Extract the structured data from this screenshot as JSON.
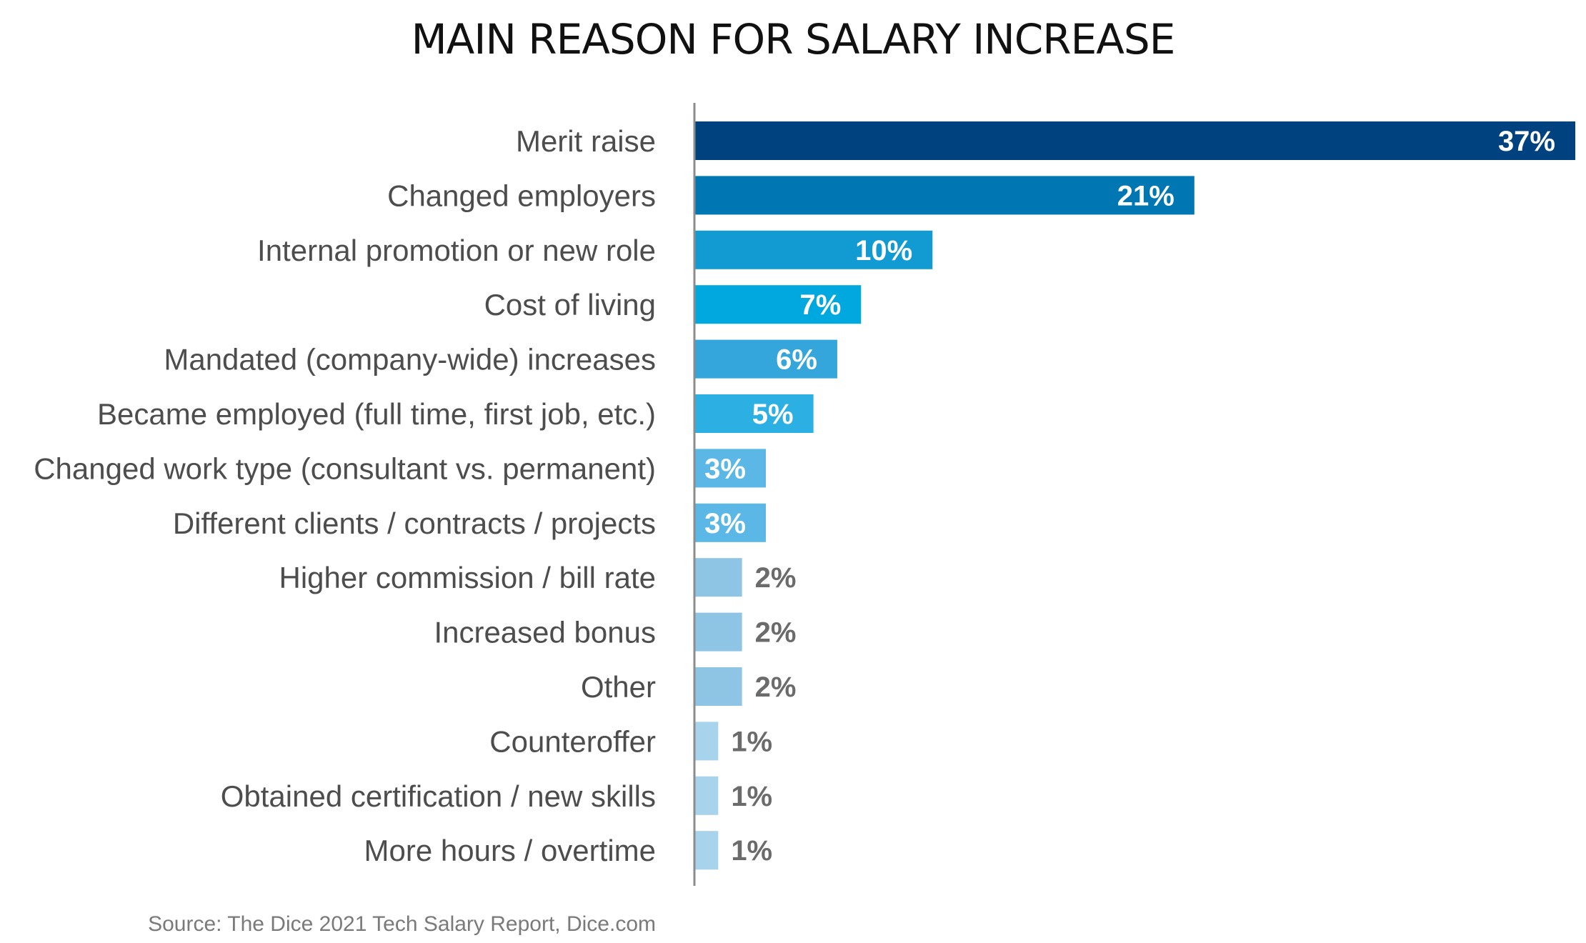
{
  "chart_data": {
    "type": "bar",
    "orientation": "horizontal",
    "title": "MAIN REASON FOR SALARY INCREASE",
    "categories": [
      "Merit raise",
      "Changed employers",
      "Internal promotion or new role",
      "Cost of living",
      "Mandated (company-wide) increases",
      "Became employed (full time, first job, etc.)",
      "Changed work type (consultant vs. permanent)",
      "Different clients / contracts / projects",
      "Higher commission / bill rate",
      "Increased bonus",
      "Other",
      "Counteroffer",
      "Obtained certification / new skills",
      "More hours / overtime"
    ],
    "values": [
      37,
      21,
      10,
      7,
      6,
      5,
      3,
      3,
      2,
      2,
      2,
      1,
      1,
      1
    ],
    "value_labels": [
      "37%",
      "21%",
      "10%",
      "7%",
      "6%",
      "5%",
      "3%",
      "3%",
      "2%",
      "2%",
      "2%",
      "1%",
      "1%",
      "1%"
    ],
    "bar_colors": [
      "#00427f",
      "#0076b3",
      "#129bd3",
      "#00a8e0",
      "#35a6dc",
      "#2cb0e4",
      "#5bb7e6",
      "#5bb7e6",
      "#8ec5e5",
      "#8ec5e5",
      "#8ec5e5",
      "#a7d3ec",
      "#a7d3ec",
      "#a7d3ec"
    ],
    "label_inside_color": "#ffffff",
    "label_outside_color": "#6b6b6b",
    "axis_color": "#8c8c8c",
    "xlim": [
      0,
      37
    ],
    "grid": false,
    "legend": "none",
    "source": "Source: The Dice 2021 Tech Salary Report, Dice.com"
  }
}
